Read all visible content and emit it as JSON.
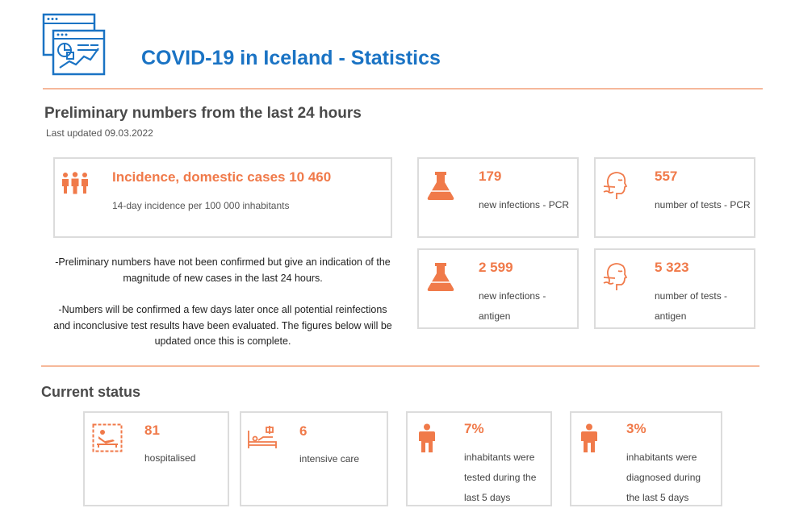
{
  "header": {
    "title": "COVID-19 in Iceland - Statistics",
    "logo_icon": "dashboard-chart-icon"
  },
  "preliminary": {
    "heading": "Preliminary numbers from the last 24 hours",
    "last_updated": "Last updated 09.03.2022",
    "incidence": {
      "title": "Incidence, domestic cases 10 460",
      "subtitle": "14-day incidence per 100 000 inhabitants",
      "icon": "people-group-icon"
    },
    "cards": [
      {
        "value": "179",
        "label": "new infections - PCR",
        "icon": "flask-icon"
      },
      {
        "value": "557",
        "label": "number of tests - PCR",
        "icon": "nasal-swab-icon"
      },
      {
        "value": "2 599",
        "label": "new infections - antigen",
        "icon": "flask-icon"
      },
      {
        "value": "5 323",
        "label": "number of tests - antigen",
        "icon": "nasal-swab-icon"
      }
    ],
    "notes": [
      "-Preliminary numbers have not been confirmed but give an indication of the magnitude of new cases in the last 24 hours.",
      "-Numbers will be confirmed a few days later once all potential reinfections and inconclusive test results have been evaluated. The figures below will be updated once this is complete."
    ]
  },
  "current_status": {
    "heading": "Current status",
    "cards": [
      {
        "value": "81",
        "label": "hospitalised",
        "icon": "hospital-bed-icon"
      },
      {
        "value": "6",
        "label": "intensive care",
        "icon": "icu-bed-icon"
      },
      {
        "value": "7%",
        "label": "inhabitants were tested during the last 5 days",
        "icon": "person-icon"
      },
      {
        "value": "3%",
        "label": "inhabitants were diagnosed during the last 5 days",
        "icon": "person-icon"
      }
    ]
  },
  "colors": {
    "title_blue": "#1a73c4",
    "accent_orange": "#f07a4a",
    "rule": "#f6b89a",
    "card_border": "#dcdcdc"
  }
}
